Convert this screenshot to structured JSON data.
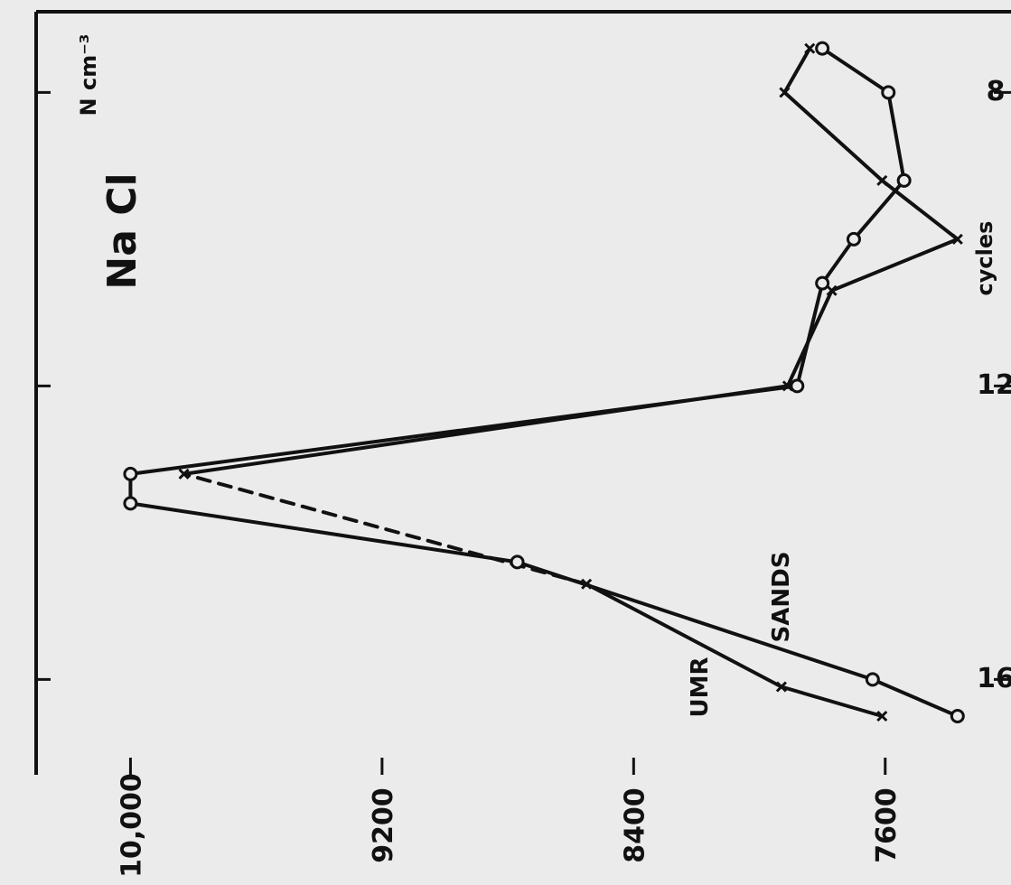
{
  "chart_data": {
    "type": "line",
    "title": "Na Cl",
    "ylabel": "N cm⁻³",
    "xlabel": "cycles",
    "x_ticks": [
      16,
      12,
      8
    ],
    "y_ticks": [
      {
        "value": 10000,
        "label": "10,000"
      },
      {
        "value": 9200,
        "label": "9200"
      },
      {
        "value": 8400,
        "label": "8400"
      },
      {
        "value": 7600,
        "label": "7600"
      }
    ],
    "xlim": [
      17.3,
      6.9
    ],
    "ylim": [
      10300,
      7200
    ],
    "series": [
      {
        "name": "SANDS",
        "marker": "circle",
        "points": [
          [
            16.5,
            7370
          ],
          [
            16.0,
            7640
          ],
          [
            14.4,
            8770
          ],
          [
            13.6,
            10000
          ],
          [
            13.2,
            10000
          ],
          [
            12.0,
            7880
          ],
          [
            10.6,
            7800
          ],
          [
            10.0,
            7700
          ],
          [
            9.2,
            7540
          ],
          [
            8.0,
            7590
          ],
          [
            7.4,
            7800
          ]
        ]
      },
      {
        "name": "UMR",
        "marker": "x",
        "points": [
          [
            16.5,
            7610
          ],
          [
            16.1,
            7930
          ],
          [
            14.7,
            8550
          ],
          [
            13.2,
            9830
          ],
          [
            12.0,
            7910
          ],
          [
            10.7,
            7770
          ],
          [
            10.0,
            7370
          ],
          [
            9.2,
            7610
          ],
          [
            8.0,
            7920
          ],
          [
            7.4,
            7840
          ]
        ],
        "dashed_segment": [
          2,
          3
        ]
      }
    ]
  }
}
